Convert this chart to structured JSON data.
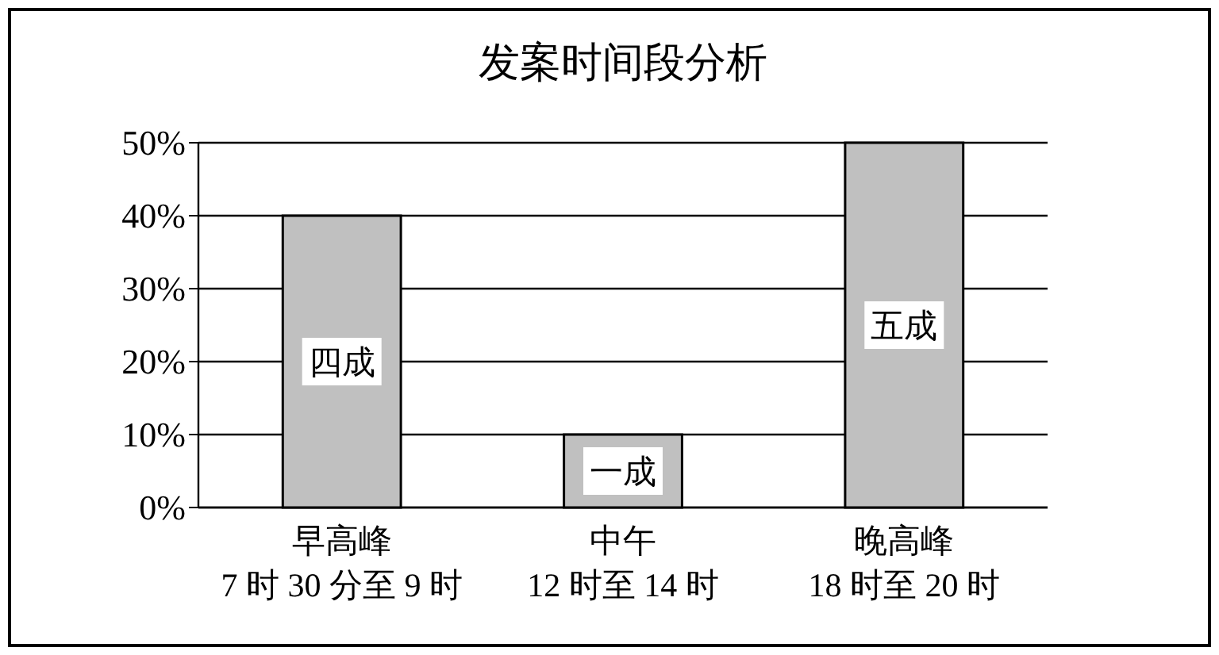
{
  "chart_data": {
    "type": "bar",
    "title": "发案时间段分析",
    "categories": [
      "早高峰\n7 时 30 分至 9 时",
      "中午\n12 时至 14 时",
      "晚高峰\n18 时至 20 时"
    ],
    "values": [
      40,
      10,
      50
    ],
    "color": "#c0c0c0",
    "value_labels": [
      "四成",
      "一成",
      "五成"
    ],
    "ylim": [
      0,
      50
    ],
    "yticks": [
      {
        "value": 0,
        "label": "0%"
      },
      {
        "value": 10,
        "label": "10%"
      },
      {
        "value": 20,
        "label": "20%"
      },
      {
        "value": 30,
        "label": "30%"
      },
      {
        "value": 40,
        "label": "40%"
      },
      {
        "value": 50,
        "label": "50%"
      }
    ],
    "grid": "y"
  }
}
